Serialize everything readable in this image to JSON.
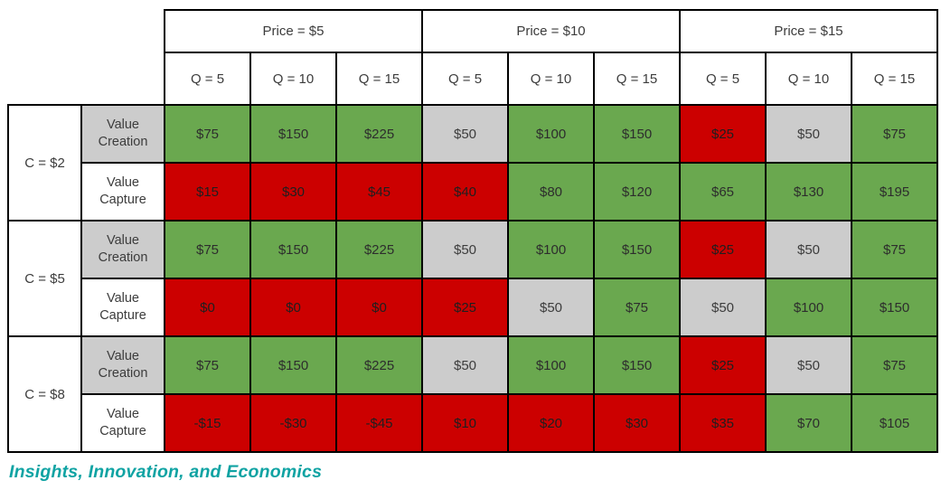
{
  "colors": {
    "positive_green": "#6aa84f",
    "negative_red": "#cc0000",
    "neutral_gray": "#cccccc",
    "border_black": "#000000",
    "caption_teal": "#0fa3a3"
  },
  "header": {
    "price_groups": [
      {
        "label": "Price = $5"
      },
      {
        "label": "Price = $10"
      },
      {
        "label": "Price = $15"
      }
    ],
    "quantity_labels": [
      "Q = 5",
      "Q = 10",
      "Q = 15",
      "Q = 5",
      "Q = 10",
      "Q = 15",
      "Q = 5",
      "Q = 10",
      "Q = 15"
    ]
  },
  "groups": [
    {
      "cost_label": "C = $2",
      "rows": [
        {
          "label": "Value Creation",
          "label_color": "gray",
          "cells": [
            {
              "value": "$75",
              "color": "green"
            },
            {
              "value": "$150",
              "color": "green"
            },
            {
              "value": "$225",
              "color": "green"
            },
            {
              "value": "$50",
              "color": "gray"
            },
            {
              "value": "$100",
              "color": "green"
            },
            {
              "value": "$150",
              "color": "green"
            },
            {
              "value": "$25",
              "color": "red"
            },
            {
              "value": "$50",
              "color": "gray"
            },
            {
              "value": "$75",
              "color": "green"
            }
          ]
        },
        {
          "label": "Value Capture",
          "label_color": "white",
          "cells": [
            {
              "value": "$15",
              "color": "red"
            },
            {
              "value": "$30",
              "color": "red"
            },
            {
              "value": "$45",
              "color": "red"
            },
            {
              "value": "$40",
              "color": "red"
            },
            {
              "value": "$80",
              "color": "green"
            },
            {
              "value": "$120",
              "color": "green"
            },
            {
              "value": "$65",
              "color": "green"
            },
            {
              "value": "$130",
              "color": "green"
            },
            {
              "value": "$195",
              "color": "green"
            }
          ]
        }
      ]
    },
    {
      "cost_label": "C = $5",
      "rows": [
        {
          "label": "Value Creation",
          "label_color": "gray",
          "cells": [
            {
              "value": "$75",
              "color": "green"
            },
            {
              "value": "$150",
              "color": "green"
            },
            {
              "value": "$225",
              "color": "green"
            },
            {
              "value": "$50",
              "color": "gray"
            },
            {
              "value": "$100",
              "color": "green"
            },
            {
              "value": "$150",
              "color": "green"
            },
            {
              "value": "$25",
              "color": "red"
            },
            {
              "value": "$50",
              "color": "gray"
            },
            {
              "value": "$75",
              "color": "green"
            }
          ]
        },
        {
          "label": "Value Capture",
          "label_color": "white",
          "cells": [
            {
              "value": "$0",
              "color": "red"
            },
            {
              "value": "$0",
              "color": "red"
            },
            {
              "value": "$0",
              "color": "red"
            },
            {
              "value": "$25",
              "color": "red"
            },
            {
              "value": "$50",
              "color": "gray"
            },
            {
              "value": "$75",
              "color": "green"
            },
            {
              "value": "$50",
              "color": "gray"
            },
            {
              "value": "$100",
              "color": "green"
            },
            {
              "value": "$150",
              "color": "green"
            }
          ]
        }
      ]
    },
    {
      "cost_label": "C = $8",
      "rows": [
        {
          "label": "Value Creation",
          "label_color": "gray",
          "cells": [
            {
              "value": "$75",
              "color": "green"
            },
            {
              "value": "$150",
              "color": "green"
            },
            {
              "value": "$225",
              "color": "green"
            },
            {
              "value": "$50",
              "color": "gray"
            },
            {
              "value": "$100",
              "color": "green"
            },
            {
              "value": "$150",
              "color": "green"
            },
            {
              "value": "$25",
              "color": "red"
            },
            {
              "value": "$50",
              "color": "gray"
            },
            {
              "value": "$75",
              "color": "green"
            }
          ]
        },
        {
          "label": "Value Capture",
          "label_color": "white",
          "cells": [
            {
              "value": "-$15",
              "color": "red"
            },
            {
              "value": "-$30",
              "color": "red"
            },
            {
              "value": "-$45",
              "color": "red"
            },
            {
              "value": "$10",
              "color": "red"
            },
            {
              "value": "$20",
              "color": "red"
            },
            {
              "value": "$30",
              "color": "red"
            },
            {
              "value": "$35",
              "color": "red"
            },
            {
              "value": "$70",
              "color": "green"
            },
            {
              "value": "$105",
              "color": "green"
            }
          ]
        }
      ]
    }
  ],
  "caption": "Insights, Innovation, and Economics"
}
